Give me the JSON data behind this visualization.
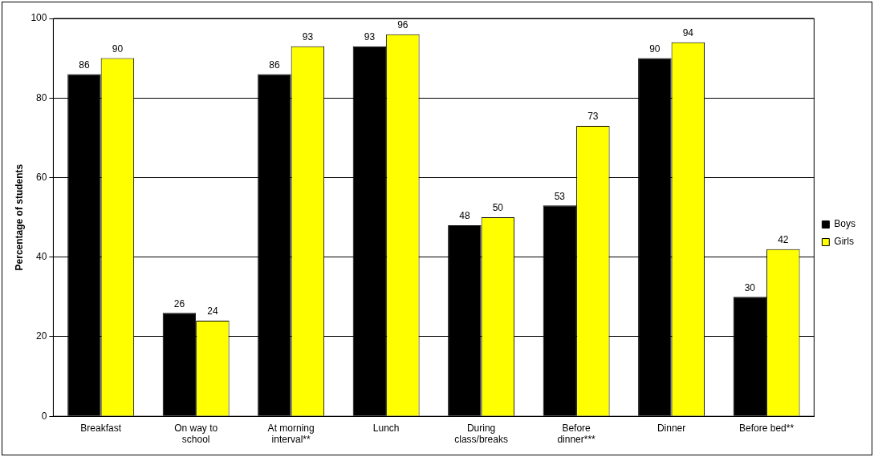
{
  "chart_data": {
    "type": "bar",
    "ylabel": "Percentage of students",
    "categories": [
      "Breakfast",
      "On way to school",
      "At morning interval**",
      "Lunch",
      "During class/breaks",
      "Before dinner***",
      "Dinner",
      "Before bed**"
    ],
    "series": [
      {
        "name": "Boys",
        "color": "#000000",
        "values": [
          86,
          26,
          86,
          93,
          48,
          53,
          90,
          30
        ]
      },
      {
        "name": "Girls",
        "color": "#ffff00",
        "values": [
          90,
          24,
          93,
          96,
          50,
          73,
          94,
          42
        ]
      }
    ],
    "ylim": [
      0,
      100
    ],
    "yticks": [
      0,
      20,
      40,
      60,
      80,
      100
    ],
    "grid": "y",
    "legend": "right",
    "data_labels": true
  }
}
